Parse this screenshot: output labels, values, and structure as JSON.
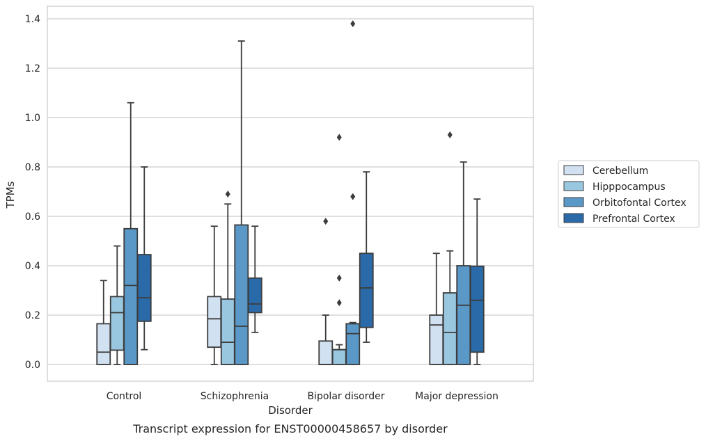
{
  "chart_data": {
    "type": "box",
    "title": "Transcript expression for ENST00000458657 by disorder",
    "xlabel": "Disorder",
    "ylabel": "TPMs",
    "ylim": [
      -0.067,
      1.45
    ],
    "yticks": [
      0.0,
      0.2,
      0.4,
      0.6,
      0.8,
      1.0,
      1.2,
      1.4
    ],
    "ytick_labels": [
      "0.0",
      "0.2",
      "0.4",
      "0.6",
      "0.8",
      "1.0",
      "1.2",
      "1.4"
    ],
    "grid": true,
    "legend_position": "right",
    "categories": [
      "Control",
      "Schizophrenia",
      "Bipolar disorder",
      "Major depression"
    ],
    "series": [
      {
        "name": "Cerebellum",
        "color": "#d1e1f1",
        "boxes": [
          {
            "whislo": 0.0,
            "q1": 0.0,
            "med": 0.05,
            "q3": 0.165,
            "whishi": 0.34,
            "fliers": []
          },
          {
            "whislo": 0.0,
            "q1": 0.07,
            "med": 0.185,
            "q3": 0.275,
            "whishi": 0.56,
            "fliers": []
          },
          {
            "whislo": 0.0,
            "q1": 0.0,
            "med": 0.0,
            "q3": 0.095,
            "whishi": 0.2,
            "fliers": [
              0.58
            ]
          },
          {
            "whislo": 0.0,
            "q1": 0.0,
            "med": 0.16,
            "q3": 0.2,
            "whishi": 0.45,
            "fliers": []
          }
        ]
      },
      {
        "name": "Hipppocampus",
        "color": "#9ac7e0",
        "boxes": [
          {
            "whislo": 0.0,
            "q1": 0.058,
            "med": 0.21,
            "q3": 0.275,
            "whishi": 0.48,
            "fliers": []
          },
          {
            "whislo": 0.0,
            "q1": 0.0,
            "med": 0.09,
            "q3": 0.265,
            "whishi": 0.65,
            "fliers": [
              0.69
            ]
          },
          {
            "whislo": 0.0,
            "q1": 0.0,
            "med": 0.06,
            "q3": 0.06,
            "whishi": 0.08,
            "fliers": [
              0.25,
              0.35,
              0.92
            ]
          },
          {
            "whislo": 0.0,
            "q1": 0.0,
            "med": 0.13,
            "q3": 0.29,
            "whishi": 0.46,
            "fliers": [
              0.93
            ]
          }
        ]
      },
      {
        "name": "Orbitofontal Cortex",
        "color": "#5a98c8",
        "boxes": [
          {
            "whislo": 0.0,
            "q1": 0.0,
            "med": 0.32,
            "q3": 0.55,
            "whishi": 1.06,
            "fliers": []
          },
          {
            "whislo": 0.0,
            "q1": 0.0,
            "med": 0.155,
            "q3": 0.565,
            "whishi": 1.31,
            "fliers": []
          },
          {
            "whislo": 0.0,
            "q1": 0.0,
            "med": 0.125,
            "q3": 0.165,
            "whishi": 0.17,
            "fliers": [
              0.68,
              1.38
            ]
          },
          {
            "whislo": 0.0,
            "q1": 0.0,
            "med": 0.24,
            "q3": 0.4,
            "whishi": 0.82,
            "fliers": []
          }
        ]
      },
      {
        "name": "Prefrontal Cortex",
        "color": "#2b6aa8",
        "boxes": [
          {
            "whislo": 0.06,
            "q1": 0.175,
            "med": 0.27,
            "q3": 0.445,
            "whishi": 0.8,
            "fliers": []
          },
          {
            "whislo": 0.13,
            "q1": 0.21,
            "med": 0.245,
            "q3": 0.35,
            "whishi": 0.56,
            "fliers": []
          },
          {
            "whislo": 0.09,
            "q1": 0.15,
            "med": 0.31,
            "q3": 0.45,
            "whishi": 0.78,
            "fliers": []
          },
          {
            "whislo": 0.0,
            "q1": 0.05,
            "med": 0.26,
            "q3": 0.398,
            "whishi": 0.67,
            "fliers": []
          }
        ]
      }
    ]
  }
}
